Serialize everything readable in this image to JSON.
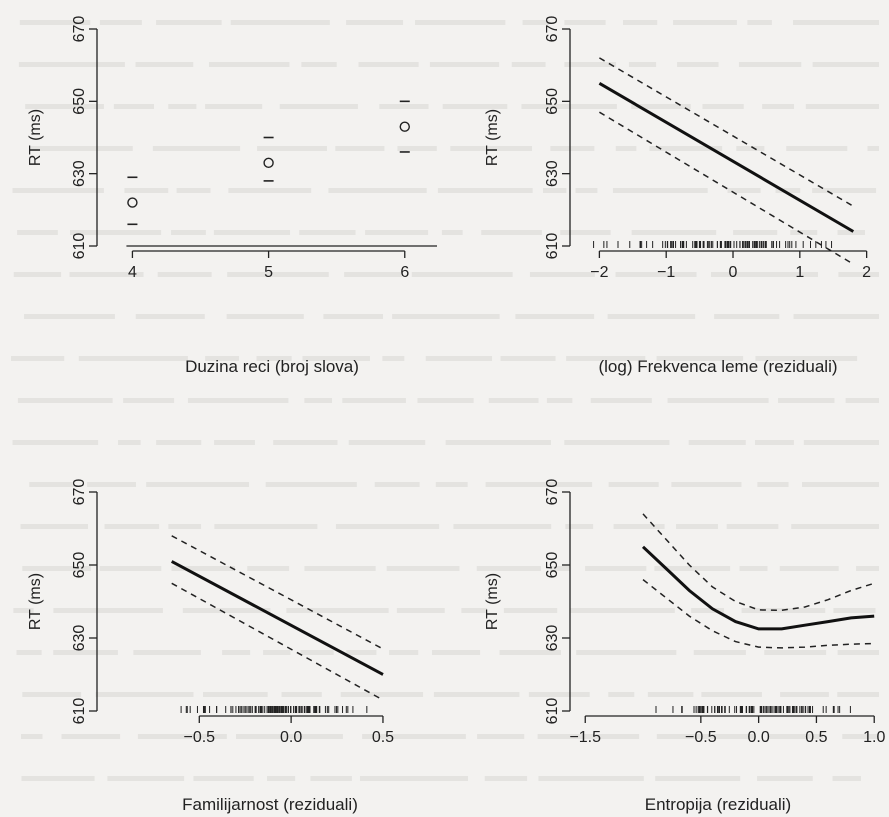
{
  "chart_data": [
    {
      "type": "scatter",
      "panel": "top-left",
      "xlabel": "Duzina reci (broj slova)",
      "ylabel": "RT (ms)",
      "xlim": [
        3.85,
        6.2
      ],
      "ylim": [
        610,
        670
      ],
      "xticks": [
        "4",
        "5",
        "6"
      ],
      "xtick_values": [
        4,
        5,
        6
      ],
      "yticks": [
        "610",
        "630",
        "650",
        "670"
      ],
      "ytick_values": [
        610,
        630,
        650,
        670
      ],
      "points": [
        {
          "x": 4,
          "y": 622,
          "lower": 616,
          "upper": 629
        },
        {
          "x": 5,
          "y": 633,
          "lower": 628,
          "upper": 640
        },
        {
          "x": 6,
          "y": 643,
          "lower": 636,
          "upper": 650
        }
      ]
    },
    {
      "type": "line",
      "panel": "top-right",
      "xlabel": "(log) Frekvenca leme (reziduali)",
      "ylabel": "RT (ms)",
      "xlim": [
        -2.35,
        2.2
      ],
      "ylim": [
        610,
        670
      ],
      "xticks": [
        "−2",
        "−1",
        "0",
        "1",
        "2"
      ],
      "xtick_values": [
        -2,
        -1,
        0,
        1,
        2
      ],
      "yticks": [
        "610",
        "630",
        "650",
        "670"
      ],
      "ytick_values": [
        610,
        630,
        650,
        670
      ],
      "x": [
        -2,
        1.8
      ],
      "fit": [
        655,
        614
      ],
      "lower": [
        647,
        605
      ],
      "upper": [
        662,
        621
      ],
      "rug": true
    },
    {
      "type": "line",
      "panel": "bottom-left",
      "xlabel": "Familijarnost (reziduali)",
      "ylabel": "RT (ms)",
      "xlim": [
        -0.85,
        0.62
      ],
      "ylim": [
        610,
        670
      ],
      "xticks": [
        "−0.5",
        "0.0",
        "0.5"
      ],
      "xtick_values": [
        -0.5,
        0,
        0.5
      ],
      "yticks": [
        "610",
        "630",
        "650",
        "670"
      ],
      "ytick_values": [
        610,
        630,
        650,
        670
      ],
      "x": [
        -0.65,
        0.5
      ],
      "fit": [
        651,
        620
      ],
      "lower": [
        645,
        613
      ],
      "upper": [
        658,
        627
      ],
      "rug": true
    },
    {
      "type": "line",
      "panel": "bottom-right",
      "xlabel": "Entropija (reziduali)",
      "ylabel": "RT (ms)",
      "xlim": [
        -1.58,
        1.05
      ],
      "ylim": [
        610,
        670
      ],
      "xticks": [
        "−1.5",
        "−0.5",
        "0.0",
        "0.5",
        "1.0"
      ],
      "xtick_values": [
        -1.5,
        -0.5,
        0,
        0.5,
        1
      ],
      "yticks": [
        "610",
        "630",
        "650",
        "670"
      ],
      "ytick_values": [
        610,
        630,
        650,
        670
      ],
      "x": [
        -1.0,
        -0.8,
        -0.6,
        -0.4,
        -0.2,
        0.0,
        0.2,
        0.4,
        0.6,
        0.8,
        1.0
      ],
      "fit": [
        655,
        649,
        643,
        638,
        634.5,
        632.5,
        632.5,
        633.5,
        634.5,
        635.5,
        636
      ],
      "lower": [
        646,
        641,
        636,
        632,
        629,
        627.5,
        627.3,
        627.5,
        628,
        628.3,
        628.5
      ],
      "upper": [
        664,
        657,
        650,
        644,
        640,
        637.7,
        637.6,
        638.5,
        640.5,
        643,
        645
      ],
      "rug": true
    }
  ]
}
